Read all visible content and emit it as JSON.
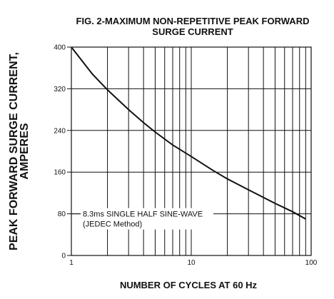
{
  "chart_data": {
    "type": "line",
    "title_line1": "FIG. 2-MAXIMUM NON-REPETITIVE PEAK FORWARD",
    "title_line2": "SURGE CURRENT",
    "ylabel_line1": "PEAK FORWARD SURGE CURRENT,",
    "ylabel_line2": "AMPERES",
    "xlabel": "NUMBER OF CYCLES AT 60 Hz",
    "xscale": "log",
    "xlim": [
      1,
      100
    ],
    "ylim": [
      0,
      400
    ],
    "grid": true,
    "x_ticks": [
      1,
      10,
      100
    ],
    "x_tick_labels": [
      "1",
      "10",
      "100"
    ],
    "y_ticks": [
      0,
      80,
      160,
      240,
      320,
      400
    ],
    "y_tick_labels": [
      "0",
      "80",
      "160",
      "240",
      "320",
      "400"
    ],
    "annotation_line1": "8.3ms SINGLE HALF SINE-WAVE",
    "annotation_line2": "(JEDEC Method)",
    "series": [
      {
        "x": [
          1,
          1.5,
          2,
          3,
          4,
          5,
          7,
          10,
          15,
          20,
          30,
          50,
          70,
          90
        ],
        "values": [
          400,
          348,
          318,
          280,
          255,
          237,
          212,
          190,
          164,
          147,
          126,
          100,
          84,
          70
        ]
      }
    ]
  }
}
